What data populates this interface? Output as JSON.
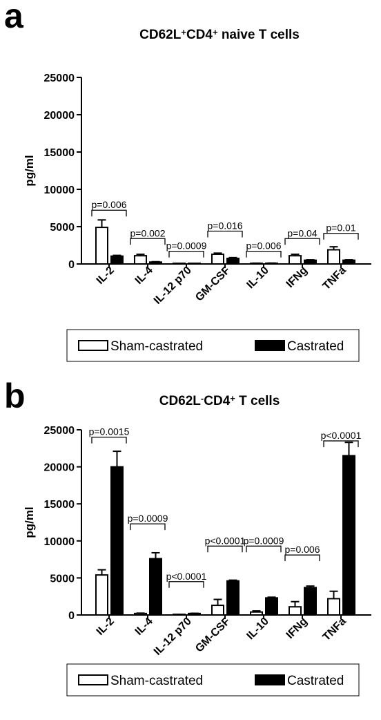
{
  "chart_data": [
    {
      "type": "bar",
      "panel_letter": "a",
      "title_parts": [
        {
          "text": "CD62L",
          "sup": false
        },
        {
          "text": "+",
          "sup": true
        },
        {
          "text": "CD4",
          "sup": false
        },
        {
          "text": "+",
          "sup": true
        },
        {
          "text": " naive T cells",
          "sup": false
        }
      ],
      "ylabel": "pg/ml",
      "ylim": [
        0,
        25000
      ],
      "yticks": [
        "0",
        "5000",
        "10000",
        "15000",
        "20000",
        "25000"
      ],
      "categories": [
        "IL-2",
        "IL-4",
        "IL-12 p70",
        "GM-CSF",
        "IL-10",
        "IFNg",
        "TNFa"
      ],
      "series": [
        {
          "name": "Sham-castrated",
          "fill": "#ffffff",
          "values": [
            4900,
            1100,
            50,
            1300,
            80,
            1100,
            1900
          ],
          "errors": [
            1000,
            200,
            20,
            150,
            30,
            200,
            400
          ]
        },
        {
          "name": "Castrated",
          "fill": "#000000",
          "values": [
            1050,
            250,
            60,
            750,
            100,
            500,
            500
          ],
          "errors": [
            100,
            50,
            20,
            100,
            20,
            50,
            50
          ]
        }
      ],
      "pvalues": [
        "p=0.006",
        "p=0.002",
        "p=0.0009",
        "p=0.016",
        "p=0.006",
        "p=0.04",
        "p=0.01"
      ],
      "pvalue_y": [
        7200,
        3400,
        1700,
        4400,
        1700,
        3400,
        4100
      ],
      "legend": {
        "position": "bottom",
        "labels": [
          "Sham-castrated",
          "Castrated"
        ]
      }
    },
    {
      "type": "bar",
      "panel_letter": "b",
      "title_parts": [
        {
          "text": "CD62L",
          "sup": false
        },
        {
          "text": "-",
          "sup": true
        },
        {
          "text": "CD4",
          "sup": false
        },
        {
          "text": "+",
          "sup": true
        },
        {
          "text": " T cells",
          "sup": false
        }
      ],
      "ylabel": "pg/ml",
      "ylim": [
        0,
        25000
      ],
      "yticks": [
        "0",
        "5000",
        "10000",
        "15000",
        "20000",
        "25000"
      ],
      "categories": [
        "IL-2",
        "IL-4",
        "IL-12 p70",
        "GM-CSF",
        "IL-10",
        "IFNg",
        "TNFa"
      ],
      "series": [
        {
          "name": "Sham-castrated",
          "fill": "#ffffff",
          "values": [
            5400,
            200,
            30,
            1300,
            400,
            1100,
            2200
          ],
          "errors": [
            700,
            50,
            10,
            800,
            150,
            700,
            1000
          ]
        },
        {
          "name": "Castrated",
          "fill": "#000000",
          "values": [
            20000,
            7600,
            200,
            4600,
            2300,
            3700,
            21500
          ],
          "errors": [
            2100,
            800,
            30,
            100,
            100,
            200,
            1800
          ]
        }
      ],
      "pvalues": [
        "p=0.0015",
        "p=0.0009",
        "p<0.0001",
        "p<0.0001",
        "p=0.0009",
        "p=0.006",
        "p<0.0001"
      ],
      "pvalue_y": [
        24000,
        12300,
        4500,
        9300,
        9300,
        8100,
        23500
      ],
      "legend": {
        "position": "bottom",
        "labels": [
          "Sham-castrated",
          "Castrated"
        ]
      }
    }
  ]
}
